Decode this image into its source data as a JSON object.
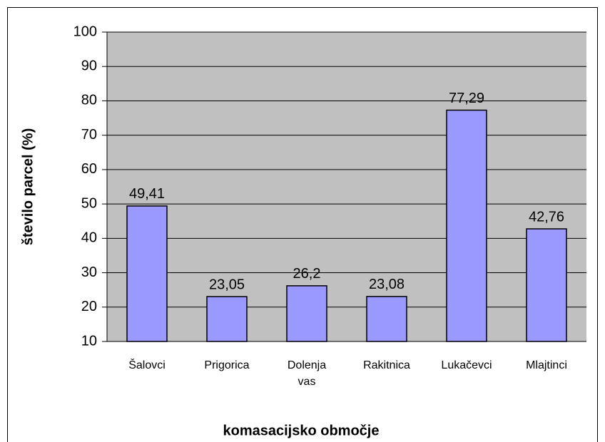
{
  "chart_data": {
    "type": "bar",
    "categories": [
      "Šalovci",
      "Prigorica",
      "Dolenja vas",
      "Rakitnica",
      "Lukačevci",
      "Mlajtinci"
    ],
    "values": [
      49.41,
      23.05,
      26.2,
      23.08,
      77.29,
      42.76
    ],
    "value_labels": [
      "49,41",
      "23,05",
      "26,2",
      "23,08",
      "77,29",
      "42,76"
    ],
    "color": "#9999ff",
    "ylim": [
      10,
      100
    ],
    "yticks": [
      10,
      20,
      30,
      40,
      50,
      60,
      70,
      80,
      90,
      100
    ],
    "grid": true,
    "ylabel": "število parcel (%)",
    "xlabel": "komasacijsko območje"
  }
}
